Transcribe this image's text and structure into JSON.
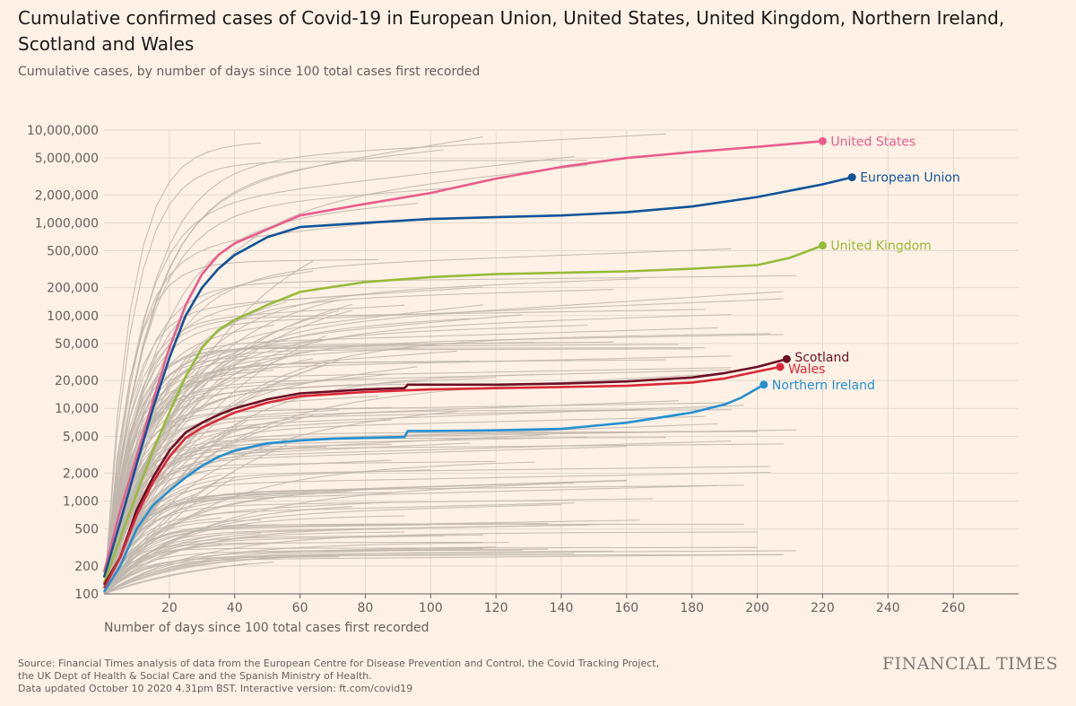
{
  "header": {
    "title": "Cumulative confirmed cases of Covid-19 in European Union, United States, United Kingdom, Northern Ireland, Scotland and Wales",
    "subtitle": "Cumulative cases, by number of days since 100 total cases first recorded"
  },
  "footer": {
    "source_line1": "Source: Financial Times analysis of data from the European Centre for Disease Prevention and Control, the Covid Tracking Project,",
    "source_line2": "the UK Dept of Health & Social Care and the Spanish Ministry of Health.",
    "source_line3": "Data updated October 10 2020 4.31pm BST. Interactive version: ft.com/covid19",
    "logo": "FINANCIAL TIMES"
  },
  "chart_data": {
    "type": "line",
    "title": "Cumulative confirmed cases of Covid-19 in European Union, United States, United Kingdom, Northern Ireland, Scotland and Wales",
    "subtitle": "Cumulative cases, by number of days since 100 total cases first recorded",
    "xlabel": "Number of days since 100 total cases first recorded",
    "ylabel": "",
    "yscale": "log",
    "xlim": [
      0,
      280
    ],
    "ylim": [
      100,
      10000000
    ],
    "xticks": [
      20,
      40,
      60,
      80,
      100,
      120,
      140,
      160,
      180,
      200,
      220,
      240,
      260
    ],
    "xtick_labels": [
      "20",
      "40",
      "60",
      "80",
      "100",
      "120",
      "140",
      "160",
      "180",
      "200",
      "220",
      "240",
      "260"
    ],
    "yticks": [
      100,
      200,
      500,
      1000,
      2000,
      5000,
      10000,
      20000,
      50000,
      100000,
      200000,
      500000,
      1000000,
      2000000,
      5000000,
      10000000
    ],
    "ytick_labels": [
      "100",
      "200",
      "500",
      "1,000",
      "2,000",
      "5,000",
      "10,000",
      "20,000",
      "50,000",
      "100,000",
      "200,000",
      "500,000",
      "1,000,000",
      "2,000,000",
      "5,000,000",
      "10,000,000"
    ],
    "grid": true,
    "background_lines": "other countries and regions shown in grey",
    "series": [
      {
        "name": "United States",
        "color": "#e95d8c",
        "x": [
          0,
          5,
          10,
          15,
          20,
          25,
          30,
          35,
          40,
          50,
          60,
          80,
          100,
          120,
          140,
          160,
          180,
          200,
          220
        ],
        "y": [
          170,
          800,
          3000,
          12000,
          45000,
          130000,
          280000,
          450000,
          600000,
          850000,
          1200000,
          1600000,
          2100000,
          3000000,
          4000000,
          5000000,
          5800000,
          6600000,
          7600000
        ]
      },
      {
        "name": "European Union",
        "color": "#0f5499",
        "x": [
          0,
          5,
          10,
          15,
          20,
          25,
          30,
          35,
          40,
          50,
          60,
          80,
          100,
          120,
          140,
          160,
          180,
          200,
          220,
          229
        ],
        "y": [
          150,
          600,
          2500,
          10000,
          35000,
          100000,
          200000,
          320000,
          450000,
          700000,
          900000,
          1000000,
          1100000,
          1150000,
          1200000,
          1300000,
          1500000,
          1900000,
          2600000,
          3100000
        ]
      },
      {
        "name": "United Kingdom",
        "color": "#96bb3a",
        "x": [
          0,
          5,
          10,
          15,
          20,
          25,
          30,
          35,
          40,
          50,
          60,
          80,
          100,
          120,
          140,
          160,
          180,
          200,
          210,
          220
        ],
        "y": [
          130,
          400,
          1200,
          3500,
          9000,
          22000,
          45000,
          70000,
          90000,
          130000,
          180000,
          230000,
          260000,
          280000,
          290000,
          300000,
          320000,
          350000,
          420000,
          570000
        ]
      },
      {
        "name": "Scotland",
        "color": "#6b0f24",
        "x": [
          0,
          5,
          10,
          15,
          20,
          25,
          30,
          35,
          40,
          50,
          60,
          80,
          92,
          93,
          100,
          120,
          140,
          160,
          180,
          190,
          200,
          209
        ],
        "y": [
          125,
          250,
          800,
          1800,
          3500,
          5500,
          7000,
          8500,
          10000,
          12500,
          14500,
          16000,
          16500,
          18000,
          18000,
          18000,
          18500,
          19500,
          21500,
          24000,
          28000,
          34000
        ]
      },
      {
        "name": "Wales",
        "color": "#d9283a",
        "x": [
          0,
          5,
          10,
          15,
          20,
          25,
          30,
          35,
          40,
          50,
          60,
          80,
          100,
          120,
          140,
          160,
          180,
          190,
          200,
          207
        ],
        "y": [
          115,
          250,
          700,
          1600,
          3000,
          4800,
          6200,
          7500,
          9000,
          11500,
          13500,
          15000,
          16000,
          16500,
          17000,
          17500,
          19000,
          21000,
          25000,
          28000
        ]
      },
      {
        "name": "Northern Ireland",
        "color": "#2490d1",
        "x": [
          0,
          5,
          10,
          15,
          20,
          25,
          30,
          35,
          40,
          50,
          60,
          70,
          80,
          92,
          93,
          100,
          120,
          140,
          160,
          180,
          190,
          195,
          202
        ],
        "y": [
          105,
          200,
          500,
          900,
          1300,
          1800,
          2400,
          3000,
          3500,
          4200,
          4500,
          4700,
          4800,
          4900,
          5700,
          5700,
          5800,
          6000,
          7000,
          9000,
          11000,
          13000,
          18000
        ]
      }
    ]
  }
}
